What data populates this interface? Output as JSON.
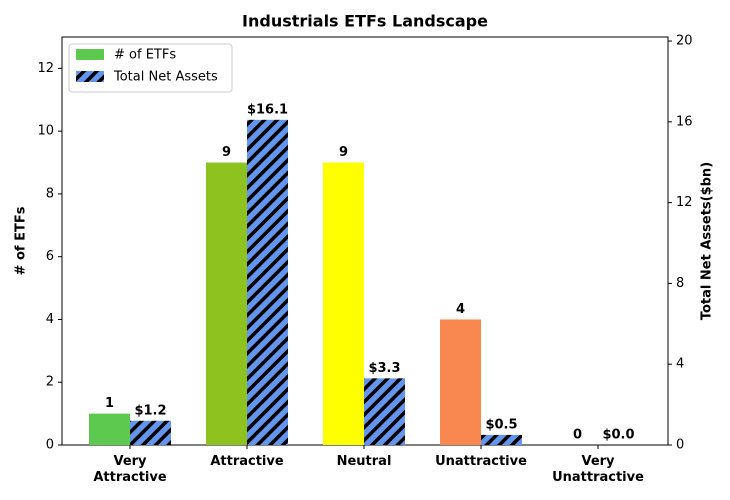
{
  "chart_data": {
    "type": "bar",
    "title": "Industrials ETFs Landscape",
    "categories": [
      "Very Attractive",
      "Attractive",
      "Neutral",
      "Unattractive",
      "Very Unattractive"
    ],
    "ylabel": "# of ETFs",
    "y2label": "Total Net Assets($bn)",
    "series": [
      {
        "name": "# of ETFs",
        "color": "#5ec94f",
        "colors": [
          "#5ec94f",
          "#8dc21f",
          "#ffff00",
          "#f98850",
          "#c0504d"
        ],
        "values": [
          1,
          9,
          9,
          4,
          0
        ]
      },
      {
        "name": "Total Net Assets",
        "color": "#6495ed",
        "hatch": true,
        "axis": "y2",
        "values": [
          1.2,
          16.1,
          3.3,
          0.5,
          0.0
        ],
        "value_labels": [
          "$1.2",
          "$16.1",
          "$3.3",
          "$0.5",
          "$0.0"
        ]
      }
    ],
    "ylim": [
      0,
      13
    ],
    "yticks": [
      0,
      2,
      4,
      6,
      8,
      10,
      12
    ],
    "y2lim": [
      0,
      20.2
    ],
    "y2ticks": [
      0,
      4,
      8,
      12,
      16,
      20
    ],
    "legend": "upper left"
  }
}
